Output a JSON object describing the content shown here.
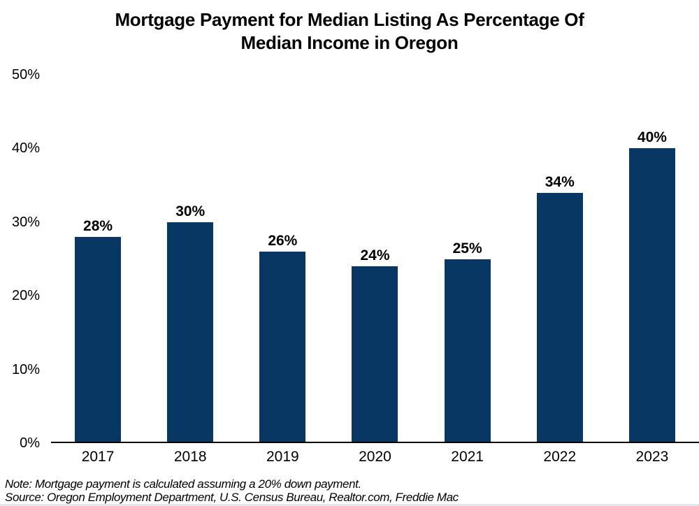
{
  "chart_data": {
    "type": "bar",
    "title": "Mortgage Payment for Median Listing As Percentage Of Median Income in Oregon",
    "title_lines": [
      "Mortgage Payment for Median Listing As Percentage Of",
      "Median Income in Oregon"
    ],
    "categories": [
      "2017",
      "2018",
      "2019",
      "2020",
      "2021",
      "2022",
      "2023"
    ],
    "values": [
      28,
      30,
      26,
      24,
      25,
      34,
      40
    ],
    "value_labels": [
      "28%",
      "30%",
      "26%",
      "24%",
      "25%",
      "34%",
      "40%"
    ],
    "xlabel": "",
    "ylabel": "",
    "ylim": [
      0,
      50
    ],
    "yticks": [
      {
        "value": 0,
        "label": "0%"
      },
      {
        "value": 10,
        "label": "10%"
      },
      {
        "value": 20,
        "label": "20%"
      },
      {
        "value": 30,
        "label": "30%"
      },
      {
        "value": 40,
        "label": "40%"
      },
      {
        "value": 50,
        "label": "50%"
      }
    ],
    "grid": false,
    "legend_position": "none",
    "bar_color": "#083764",
    "axis_color": "#000000",
    "text_color": "#000000"
  },
  "footnotes": {
    "note": "Note: Mortgage payment is calculated assuming a 20% down payment.",
    "source": "Source: Oregon Employment Department, U.S. Census Bureau, Realtor.com, Freddie Mac"
  }
}
